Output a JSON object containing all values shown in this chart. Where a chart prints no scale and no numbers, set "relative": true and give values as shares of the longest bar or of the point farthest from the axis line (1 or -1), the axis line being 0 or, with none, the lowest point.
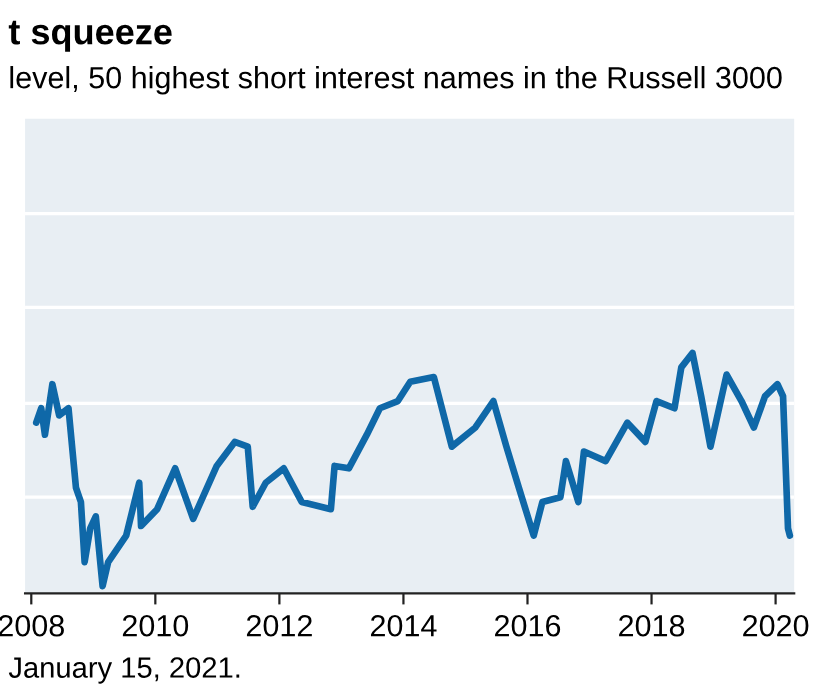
{
  "chart_data": {
    "type": "line",
    "title": "t squeeze",
    "subtitle": "level, 50 highest short interest names in the Russell 3000",
    "annotations": [
      "January 15, 2021."
    ],
    "relative": true,
    "ref_lines": [
      {
        "axis": "y",
        "value": 0.4,
        "color": "#ffffff"
      },
      {
        "axis": "y",
        "value": 0.79,
        "color": "#ffffff"
      },
      {
        "axis": "y",
        "value": 1.19,
        "color": "#ffffff"
      },
      {
        "axis": "y",
        "value": 1.58,
        "color": "#ffffff"
      }
    ],
    "xlim": [
      2007.9,
      2020.3
    ],
    "xticks": [
      2008,
      2010,
      2012,
      2014,
      2016,
      2018,
      2020
    ],
    "series": [
      {
        "color": "#0f68a8",
        "x": [
          2008.08,
          2008.16,
          2008.22,
          2008.34,
          2008.45,
          2008.6,
          2008.72,
          2008.8,
          2008.86,
          2008.95,
          2009.04,
          2009.15,
          2009.24,
          2009.53,
          2009.74,
          2009.77,
          2010.03,
          2010.32,
          2010.61,
          2010.99,
          2011.28,
          2011.49,
          2011.57,
          2011.78,
          2012.07,
          2012.36,
          2012.83,
          2012.89,
          2013.12,
          2013.41,
          2013.62,
          2013.91,
          2014.11,
          2014.49,
          2014.78,
          2015.16,
          2015.45,
          2015.66,
          2015.86,
          2016.1,
          2016.24,
          2016.53,
          2016.62,
          2016.82,
          2016.91,
          2017.26,
          2017.61,
          2017.9,
          2018.08,
          2018.37,
          2018.48,
          2018.66,
          2018.8,
          2018.95,
          2019.21,
          2019.45,
          2019.65,
          2019.83,
          2020.03,
          2020.12,
          2020.2,
          2020.23
        ],
        "values": [
          0.71,
          0.77,
          0.66,
          0.87,
          0.74,
          0.77,
          0.44,
          0.38,
          0.13,
          0.27,
          0.32,
          0.03,
          0.13,
          0.24,
          0.46,
          0.28,
          0.35,
          0.52,
          0.31,
          0.53,
          0.63,
          0.61,
          0.36,
          0.46,
          0.52,
          0.38,
          0.35,
          0.53,
          0.52,
          0.66,
          0.77,
          0.8,
          0.88,
          0.9,
          0.61,
          0.69,
          0.8,
          0.61,
          0.44,
          0.24,
          0.38,
          0.4,
          0.55,
          0.38,
          0.59,
          0.55,
          0.71,
          0.63,
          0.8,
          0.77,
          0.94,
          1,
          0.82,
          0.61,
          0.91,
          0.8,
          0.69,
          0.82,
          0.87,
          0.82,
          0.27,
          0.24
        ]
      }
    ]
  }
}
